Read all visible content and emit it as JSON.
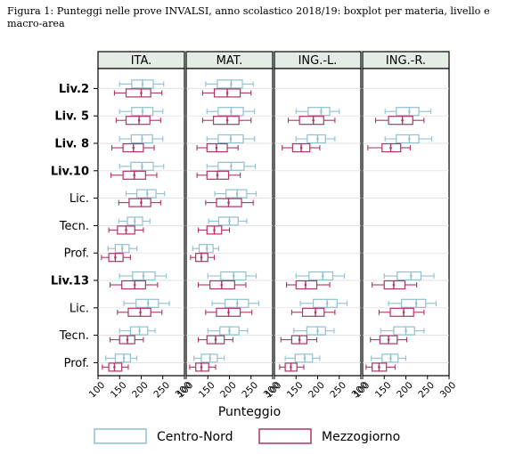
{
  "caption": "Figura 1: Punteggi nelle prove INVALSI, anno scolastico 2018/19: boxplot per materia, livello e macro-area",
  "colors": {
    "centro_nord": "#8fc1d0",
    "mezzogiorno": "#b03466",
    "strip_bg": "#e5ebe5",
    "grid": "#d9d9d9"
  },
  "chart_data": {
    "type": "boxplot",
    "xlabel": "Punteggio",
    "xlim": [
      100,
      300
    ],
    "xticks": [
      "100",
      "150",
      "200",
      "250",
      "300"
    ],
    "panels": [
      "ITA.",
      "MAT.",
      "ING.-L.",
      "ING.-R."
    ],
    "rows": [
      {
        "label": "Liv.2",
        "bold": true
      },
      {
        "label": "Liv. 5",
        "bold": true
      },
      {
        "label": "Liv. 8",
        "bold": true
      },
      {
        "label": "Liv.10",
        "bold": true
      },
      {
        "label": "Lic.",
        "bold": false
      },
      {
        "label": "Tecn.",
        "bold": false
      },
      {
        "label": "Prof.",
        "bold": false
      },
      {
        "label": "Liv.13",
        "bold": true
      },
      {
        "label": "Lic.",
        "bold": false
      },
      {
        "label": "Tecn.",
        "bold": false
      },
      {
        "label": "Prof.",
        "bold": false
      }
    ],
    "legend": [
      "Centro-Nord",
      "Mezzogiorno"
    ],
    "series": [
      {
        "name": "Centro-Nord",
        "data": [
          [
            [
              150,
              178,
              203,
              228,
              252
            ],
            [
              150,
              178,
              203,
              227,
              250
            ],
            [
              150,
              177,
              202,
              226,
              250
            ],
            [
              150,
              176,
              202,
              228,
              252
            ],
            [
              165,
              190,
              214,
              234,
              254
            ],
            [
              148,
              168,
              185,
              203,
              220
            ],
            [
              123,
              140,
              156,
              172,
              190
            ],
            [
              150,
              180,
              205,
              232,
              258
            ],
            [
              160,
              188,
              216,
              240,
              265
            ],
            [
              150,
              175,
              196,
              215,
              232
            ],
            [
              118,
              140,
              160,
              175,
              190
            ]
          ],
          [
            [
              145,
              172,
              204,
              230,
              255
            ],
            [
              148,
              174,
              204,
              232,
              258
            ],
            [
              148,
              174,
              203,
              232,
              258
            ],
            [
              148,
              174,
              204,
              234,
              260
            ],
            [
              166,
              192,
              218,
              240,
              262
            ],
            [
              152,
              175,
              200,
              220,
              240
            ],
            [
              115,
              130,
              148,
              162,
              175
            ],
            [
              150,
              180,
              210,
              238,
              262
            ],
            [
              160,
              190,
              218,
              244,
              268
            ],
            [
              150,
              178,
              200,
              222,
              242
            ],
            [
              118,
              135,
              155,
              172,
              188
            ]
          ],
          null,
          null
        ]
      },
      {
        "name": "Mezzogiorno",
        "data": [
          [
            [
              138,
              165,
              200,
              222,
              248
            ],
            [
              142,
              165,
              195,
              220,
              245
            ],
            [
              132,
              158,
              182,
              205,
              230
            ],
            [
              130,
              158,
              184,
              210,
              236
            ],
            [
              148,
              172,
              200,
              222,
              245
            ],
            [
              125,
              145,
              165,
              185,
              205
            ],
            [
              108,
              125,
              140,
              158,
              175
            ],
            [
              128,
              155,
              185,
              210,
              238
            ],
            [
              145,
              170,
              198,
              222,
              248
            ],
            [
              128,
              150,
              168,
              185,
              205
            ],
            [
              110,
              125,
              138,
              155,
              170
            ]
          ],
          [
            [
              138,
              165,
              195,
              225,
              250
            ],
            [
              138,
              163,
              195,
              222,
              250
            ],
            [
              125,
              148,
              170,
              195,
              220
            ],
            [
              125,
              148,
              172,
              198,
              225
            ],
            [
              145,
              170,
              198,
              228,
              255
            ],
            [
              128,
              148,
              165,
              182,
              200
            ],
            [
              110,
              122,
              135,
              150,
              165
            ],
            [
              128,
              155,
              182,
              212,
              238
            ],
            [
              145,
              170,
              198,
              225,
              252
            ],
            [
              128,
              148,
              168,
              188,
              208
            ],
            [
              108,
              122,
              135,
              152,
              168
            ]
          ],
          null,
          null
        ]
      },
      {
        "name": "Centro-Nord",
        "data": [
          null,
          null,
          [
            null,
            [
              150,
              178,
              208,
              228,
              250
            ],
            [
              150,
              176,
              200,
              218,
              240
            ],
            null,
            null,
            null,
            null,
            [
              150,
              180,
              212,
              235,
              262
            ],
            [
              160,
              190,
              222,
              245,
              268
            ],
            [
              145,
              175,
              200,
              218,
              238
            ],
            [
              125,
              148,
              170,
              188,
              205
            ]
          ],
          [
            null,
            [
              152,
              178,
              208,
              230,
              258
            ],
            [
              152,
              178,
              208,
              230,
              260
            ],
            null,
            null,
            null,
            null,
            [
              150,
              180,
              212,
              235,
              265
            ],
            [
              160,
              190,
              224,
              246,
              270
            ],
            [
              142,
              172,
              200,
              220,
              242
            ],
            [
              120,
              145,
              165,
              182,
              200
            ]
          ]
        ]
      },
      {
        "name": "Mezzogiorno",
        "data": [
          null,
          null,
          [
            null,
            [
              132,
              158,
              190,
              214,
              240
            ],
            [
              118,
              142,
              162,
              182,
              205
            ],
            null,
            null,
            null,
            null,
            [
              128,
              150,
              172,
              198,
              228
            ],
            [
              140,
              165,
              195,
              215,
              240
            ],
            [
              115,
              140,
              158,
              175,
              198
            ],
            [
              112,
              125,
              138,
              152,
              168
            ]
          ],
          [
            null,
            [
              130,
              160,
              192,
              216,
              242
            ],
            [
              112,
              145,
              165,
              188,
              210
            ],
            null,
            null,
            null,
            null,
            [
              122,
              150,
              172,
              198,
              225
            ],
            [
              138,
              164,
              195,
              218,
              242
            ],
            [
              118,
              140,
              160,
              180,
              202
            ],
            [
              108,
              122,
              138,
              155,
              175
            ]
          ]
        ]
      }
    ]
  }
}
